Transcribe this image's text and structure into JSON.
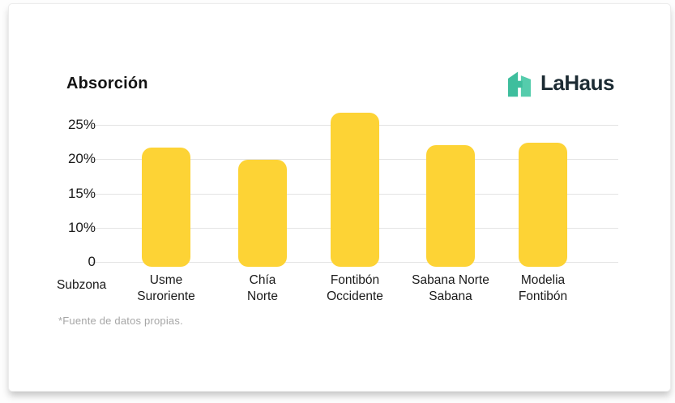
{
  "brand": {
    "name": "LaHaus",
    "icon": "lahaus-house-icon",
    "colors": {
      "icon_left": "#3EBE9D",
      "icon_right": "#55CCAC",
      "text": "#1C2B33"
    }
  },
  "footer": {
    "source_note": "*Fuente de datos propias."
  },
  "chart_data": {
    "type": "bar",
    "title": "Absorción",
    "xlabel": "Subzona",
    "ylabel": "",
    "unit": "%",
    "categories": [
      "Usme Suroriente",
      "Chía Norte",
      "Fontibón Occidente",
      "Sabana Norte Sabana",
      "Modelia Fontibón"
    ],
    "category_lines": [
      [
        "Usme",
        "Suroriente"
      ],
      [
        "Chía",
        "Norte"
      ],
      [
        "Fontibón",
        "Occidente"
      ],
      [
        "Sabana Norte",
        "Sabana"
      ],
      [
        "Modelia",
        "Fontibón"
      ]
    ],
    "values": [
      21.7,
      19.9,
      26.8,
      22.1,
      22.4
    ],
    "y_ticks": [
      {
        "label": "25%",
        "value": 25
      },
      {
        "label": "20%",
        "value": 20
      },
      {
        "label": "15%",
        "value": 15
      },
      {
        "label": "10%",
        "value": 10
      },
      {
        "label": "0",
        "value": 0
      }
    ],
    "axis_note": "ticks 0,10,15,20,25 equally spaced; bottom segment 0-10 compressed",
    "bar_color": "#FDD335",
    "grid": true,
    "legend": false
  }
}
